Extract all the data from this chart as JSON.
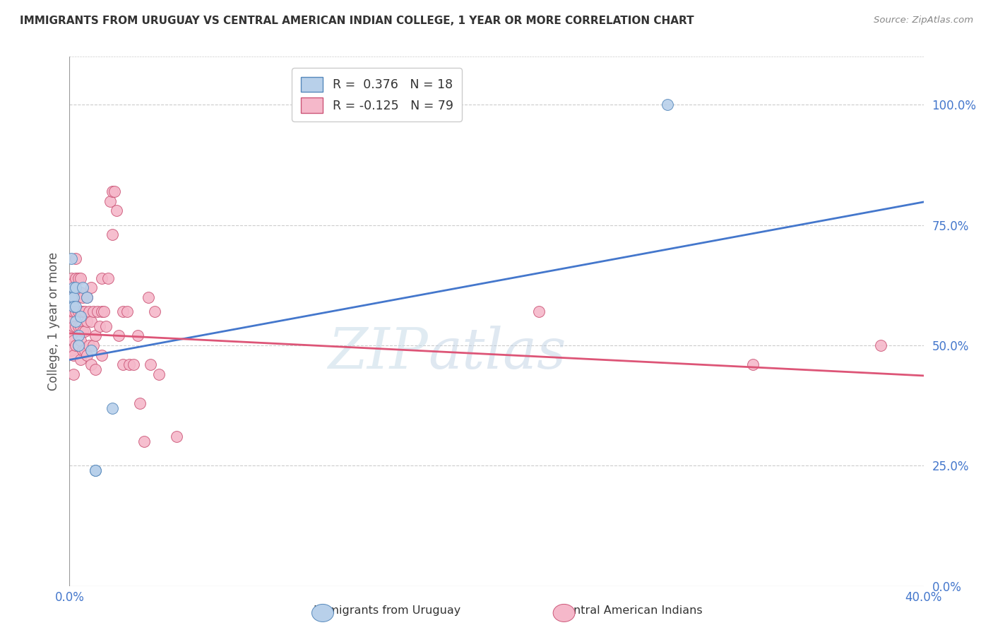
{
  "title": "IMMIGRANTS FROM URUGUAY VS CENTRAL AMERICAN INDIAN COLLEGE, 1 YEAR OR MORE CORRELATION CHART",
  "source": "Source: ZipAtlas.com",
  "ylabel": "College, 1 year or more",
  "xlim": [
    0.0,
    0.4
  ],
  "ylim": [
    0.0,
    1.1
  ],
  "ytick_labels_right": [
    "0.0%",
    "25.0%",
    "50.0%",
    "75.0%",
    "100.0%"
  ],
  "ytick_positions_right": [
    0.0,
    0.25,
    0.5,
    0.75,
    1.0
  ],
  "grid_color": "#cccccc",
  "background_color": "#ffffff",
  "watermark_zip": "ZIP",
  "watermark_atlas": "atlas",
  "blue_line_intercept": 0.47,
  "blue_line_slope": 0.82,
  "pink_line_intercept": 0.525,
  "pink_line_slope": -0.22,
  "series": [
    {
      "name": "Immigrants from Uruguay",
      "color": "#b8d0ea",
      "edge_color": "#5588bb",
      "R": 0.376,
      "N": 18,
      "line_color": "#4477cc",
      "points_x": [
        0.001,
        0.001,
        0.002,
        0.002,
        0.002,
        0.003,
        0.003,
        0.003,
        0.004,
        0.004,
        0.005,
        0.006,
        0.008,
        0.01,
        0.012,
        0.012,
        0.02,
        0.28
      ],
      "points_y": [
        0.68,
        0.6,
        0.62,
        0.6,
        0.58,
        0.62,
        0.58,
        0.55,
        0.52,
        0.5,
        0.56,
        0.62,
        0.6,
        0.49,
        0.24,
        0.24,
        0.37,
        1.0
      ]
    },
    {
      "name": "Central American Indians",
      "color": "#f5b8ca",
      "edge_color": "#cc5577",
      "R": -0.125,
      "N": 79,
      "line_color": "#dd5577",
      "points_x": [
        0.001,
        0.001,
        0.001,
        0.001,
        0.001,
        0.001,
        0.002,
        0.002,
        0.002,
        0.002,
        0.002,
        0.002,
        0.002,
        0.003,
        0.003,
        0.003,
        0.003,
        0.003,
        0.003,
        0.004,
        0.004,
        0.004,
        0.004,
        0.004,
        0.005,
        0.005,
        0.005,
        0.005,
        0.005,
        0.005,
        0.006,
        0.006,
        0.006,
        0.006,
        0.007,
        0.007,
        0.007,
        0.008,
        0.008,
        0.008,
        0.009,
        0.009,
        0.01,
        0.01,
        0.01,
        0.011,
        0.011,
        0.012,
        0.012,
        0.013,
        0.014,
        0.015,
        0.015,
        0.015,
        0.016,
        0.017,
        0.018,
        0.019,
        0.02,
        0.02,
        0.021,
        0.022,
        0.023,
        0.025,
        0.025,
        0.027,
        0.028,
        0.03,
        0.032,
        0.033,
        0.035,
        0.037,
        0.038,
        0.04,
        0.042,
        0.05,
        0.22,
        0.32,
        0.38
      ],
      "points_y": [
        0.64,
        0.6,
        0.57,
        0.55,
        0.52,
        0.49,
        0.63,
        0.6,
        0.57,
        0.54,
        0.51,
        0.48,
        0.44,
        0.68,
        0.64,
        0.6,
        0.57,
        0.54,
        0.5,
        0.64,
        0.6,
        0.57,
        0.54,
        0.5,
        0.64,
        0.61,
        0.57,
        0.54,
        0.51,
        0.47,
        0.6,
        0.57,
        0.53,
        0.49,
        0.57,
        0.53,
        0.49,
        0.6,
        0.55,
        0.48,
        0.57,
        0.5,
        0.62,
        0.55,
        0.46,
        0.57,
        0.5,
        0.52,
        0.45,
        0.57,
        0.54,
        0.64,
        0.57,
        0.48,
        0.57,
        0.54,
        0.64,
        0.8,
        0.82,
        0.73,
        0.82,
        0.78,
        0.52,
        0.57,
        0.46,
        0.57,
        0.46,
        0.46,
        0.52,
        0.38,
        0.3,
        0.6,
        0.46,
        0.57,
        0.44,
        0.31,
        0.57,
        0.46,
        0.5
      ]
    }
  ]
}
